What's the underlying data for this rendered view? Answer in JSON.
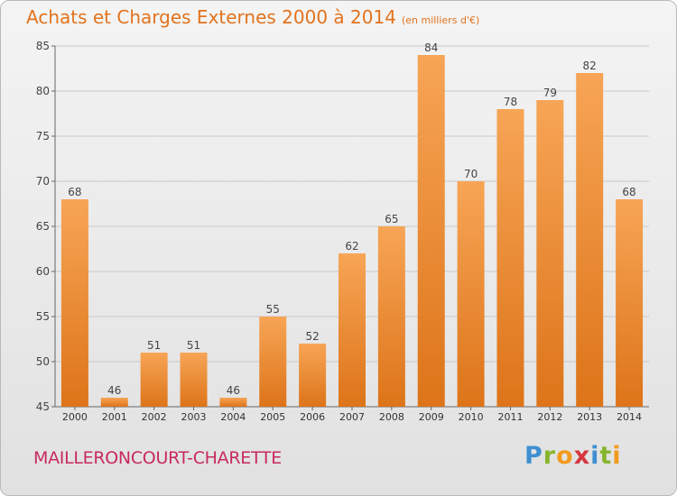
{
  "header": {
    "title": "Achats et Charges Externes 2000 à 2014",
    "unit": "(en milliers d'€)"
  },
  "footer": {
    "commune": "MAILLERONCOURT-CHARETTE",
    "logo": [
      "P",
      "r",
      "o",
      "x",
      "i",
      "t",
      "i"
    ]
  },
  "colors": {
    "title": "#e2731d",
    "commune": "#c82a5e",
    "bar_top": "#f7a556",
    "bar_bottom": "#dd7419",
    "grid": "#c8c8c8"
  },
  "chart_data": {
    "type": "bar",
    "categories": [
      "2000",
      "2001",
      "2002",
      "2003",
      "2004",
      "2005",
      "2006",
      "2007",
      "2008",
      "2009",
      "2010",
      "2011",
      "2012",
      "2013",
      "2014"
    ],
    "values": [
      68,
      46,
      51,
      51,
      46,
      55,
      52,
      62,
      65,
      84,
      70,
      78,
      79,
      82,
      68
    ],
    "ylim": [
      45,
      85
    ],
    "yticks": [
      45,
      50,
      55,
      60,
      65,
      70,
      75,
      80,
      85
    ],
    "grid": true,
    "data_labels": true
  }
}
